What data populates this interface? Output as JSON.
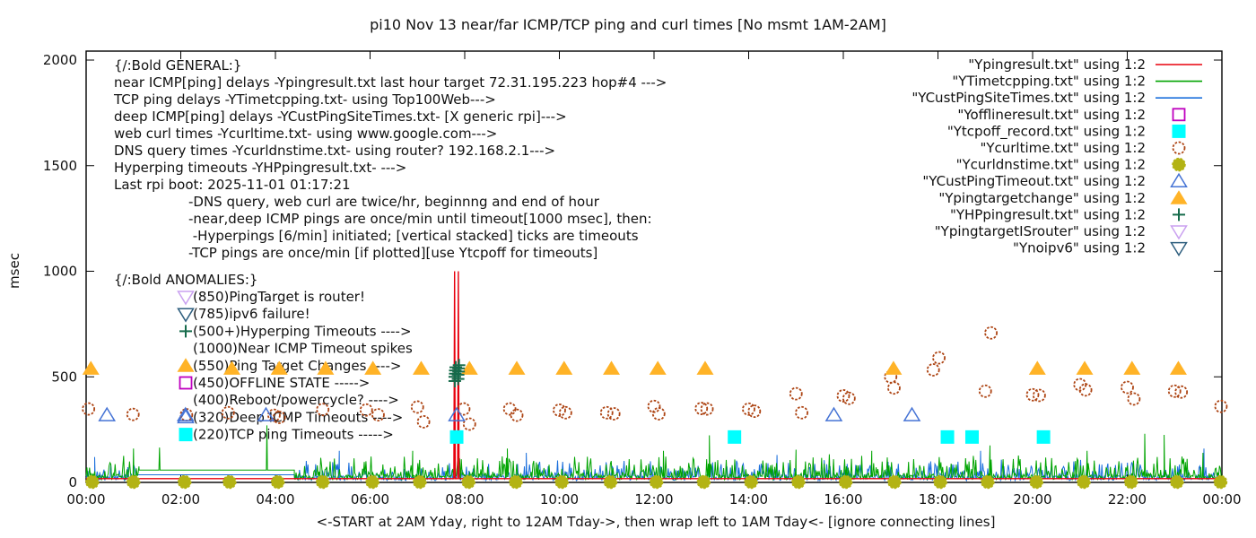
{
  "title": "pi10 Nov 13  near/far ICMP/TCP ping and curl times [No msmt 1AM-2AM]",
  "xlabel": "<-START at 2AM Yday, right to 12AM Tday->, then wrap left to 1AM Tday<- [ignore connecting lines]",
  "ylabel": "msec",
  "chart_data": {
    "type": "line+scatter",
    "x_unit": "hours",
    "x_range": [
      0,
      24
    ],
    "ylim": [
      0,
      2000
    ],
    "y_ticks": [
      0,
      500,
      1000,
      1500,
      2000
    ],
    "x_tick_labels": [
      "00:00",
      "02:00",
      "04:00",
      "06:00",
      "08:00",
      "10:00",
      "12:00",
      "14:00",
      "16:00",
      "18:00",
      "20:00",
      "22:00",
      "00:00"
    ],
    "grid": false,
    "legend_position": "top-right-inside",
    "noise_seed": 11,
    "legend": [
      {
        "label": "\"Ypingresult.txt\" using 1:2",
        "marker": "line",
        "color": "#e8000d"
      },
      {
        "label": "\"YTimetcpping.txt\" using 1:2",
        "marker": "line",
        "color": "#00a400"
      },
      {
        "label": "\"YCustPingSiteTimes.txt\" using 1:2",
        "marker": "line",
        "color": "#1b6fdc"
      },
      {
        "label": "\"Yofflineresult.txt\" using 1:2",
        "marker": "square-open",
        "color": "#bf00bf"
      },
      {
        "label": "\"Ytcpoff_record.txt\" using 1:2",
        "marker": "square-filled",
        "color": "#00ffff"
      },
      {
        "label": "\"Ycurltime.txt\" using 1:2",
        "marker": "circle-open",
        "color": "#ad4413"
      },
      {
        "label": "\"Ycurldnstime.txt\" using 1:2",
        "marker": "circle-filled",
        "color": "#b3b314"
      },
      {
        "label": "\"YCustPingTimeout.txt\" using 1:2",
        "marker": "tri-up-open",
        "color": "#4573d5"
      },
      {
        "label": "\"Ypingtargetchange\" using 1:2",
        "marker": "tri-up-filled",
        "color": "#ffb327"
      },
      {
        "label": "\"YHPpingresult.txt\" using 1:2",
        "marker": "plus",
        "color": "#166b4b"
      },
      {
        "label": "\"YpingtargetISrouter\" using 1:2",
        "marker": "tri-down-open",
        "color": "#caa1f0"
      },
      {
        "label": "\"Ynoipv6\" using 1:2",
        "marker": "tri-down-open",
        "color": "#2e5e7e"
      }
    ],
    "annotations": {
      "general_header": "{/:Bold GENERAL:}",
      "general_lines": [
        "near ICMP[ping] delays -Ypingresult.txt last hour target 72.31.195.223 hop#4 --->",
        "TCP ping delays -YTimetcpping.txt- using Top100Web--->",
        "deep ICMP[ping] delays -YCustPingSiteTimes.txt- [X generic rpi]--->",
        "web curl times -Ycurltime.txt- using www.google.com--->",
        "DNS query times -Ycurldnstime.txt- using router? 192.168.2.1--->",
        "Hyperping timeouts -YHPpingresult.txt- --->",
        "Last rpi boot: 2025-11-01 01:17:21"
      ],
      "note_lines": [
        "-DNS query, web curl are twice/hr, beginnng and end of hour",
        "-near,deep ICMP pings are once/min until timeout[1000 msec], then:",
        " -Hyperpings [6/min] initiated; [vertical stacked] ticks are timeouts",
        "-TCP pings are once/min [if plotted][use Ytcpoff for timeouts]"
      ],
      "anomalies_header": "{/:Bold ANOMALIES:}",
      "anomaly_lines": [
        {
          "marker": "tri-down-open",
          "color": "#caa1f0",
          "text": "(850)PingTarget is router!"
        },
        {
          "marker": "tri-down-open",
          "color": "#2e5e7e",
          "text": "(785)ipv6 failure!"
        },
        {
          "marker": "plus",
          "color": "#166b4b",
          "text": "(500+)Hyperping Timeouts ---->"
        },
        {
          "marker": null,
          "color": null,
          "text": "(1000)Near ICMP Timeout spikes"
        },
        {
          "marker": "tri-up-filled",
          "color": "#ffb327",
          "text": "(550)Ping Target Changes ---->"
        },
        {
          "marker": "square-open",
          "color": "#bf00bf",
          "text": "(450)OFFLINE STATE ----->"
        },
        {
          "marker": null,
          "color": null,
          "text": "(400)Reboot/powercycle? ---->"
        },
        {
          "marker": "tri-up-open",
          "color": "#4573d5",
          "text": "(320)Deep ICMP Timeouts ---->"
        },
        {
          "marker": "square-filled",
          "color": "#00ffff",
          "text": "(220)TCP ping Timeouts ----->"
        }
      ]
    },
    "series": {
      "ping_red": {
        "name": "Ypingresult.txt",
        "color": "#e8000d",
        "style": "line",
        "points": [
          [
            0,
            18
          ],
          [
            7.77,
            18
          ],
          [
            7.785,
            1000
          ],
          [
            7.8,
            18
          ],
          [
            7.85,
            18
          ],
          [
            7.865,
            1000
          ],
          [
            7.88,
            18
          ],
          [
            24,
            18
          ]
        ]
      },
      "tcp_green": {
        "name": "YTimetcpping.txt",
        "color": "#00a400",
        "style": "noisy-line",
        "segments": [
          {
            "kind": "noise",
            "from": 0,
            "to": 1.12,
            "base": 12,
            "amp": 95
          },
          {
            "kind": "flat",
            "from": 1.12,
            "to": 4.4,
            "value": 58
          },
          {
            "kind": "noise",
            "from": 4.4,
            "to": 24,
            "base": 12,
            "amp": 100
          }
        ],
        "spikes": [
          [
            1.0,
            160
          ],
          [
            1.55,
            165
          ],
          [
            3.82,
            270
          ],
          [
            6.9,
            150
          ],
          [
            8.9,
            160
          ],
          [
            12.2,
            150
          ],
          [
            13.17,
            223
          ],
          [
            15.0,
            155
          ],
          [
            16.6,
            150
          ],
          [
            19.1,
            175
          ],
          [
            21.15,
            150
          ],
          [
            22.37,
            230
          ],
          [
            22.78,
            225
          ],
          [
            23.6,
            140
          ]
        ]
      },
      "deep_blue": {
        "name": "YCustPingSiteTimes.txt",
        "color": "#1b6fdc",
        "style": "noisy-line",
        "segments": [
          {
            "kind": "noise",
            "from": 0,
            "to": 1.05,
            "base": 8,
            "amp": 75
          },
          {
            "kind": "flat",
            "from": 1.05,
            "to": 4.4,
            "value": 36
          },
          {
            "kind": "noise",
            "from": 4.4,
            "to": 24,
            "base": 8,
            "amp": 80
          }
        ],
        "spikes": [
          [
            0.18,
            120
          ],
          [
            5.35,
            150
          ],
          [
            9.3,
            140
          ],
          [
            14.6,
            130
          ],
          [
            18.9,
            150
          ],
          [
            23.62,
            160
          ]
        ]
      },
      "curl_circles": {
        "name": "Ycurltime.txt",
        "color": "#ad4413",
        "marker": "circle-open",
        "points": [
          [
            0.05,
            348
          ],
          [
            0.99,
            322
          ],
          [
            2.12,
            320
          ],
          [
            3.0,
            330
          ],
          [
            3.97,
            318
          ],
          [
            4.08,
            308
          ],
          [
            5.0,
            345
          ],
          [
            5.92,
            343
          ],
          [
            6.17,
            320
          ],
          [
            7.0,
            357
          ],
          [
            7.13,
            287
          ],
          [
            7.98,
            348
          ],
          [
            8.1,
            276
          ],
          [
            8.95,
            348
          ],
          [
            9.1,
            318
          ],
          [
            10.0,
            342
          ],
          [
            10.13,
            330
          ],
          [
            11.0,
            330
          ],
          [
            11.15,
            325
          ],
          [
            12.0,
            360
          ],
          [
            12.1,
            325
          ],
          [
            13.0,
            350
          ],
          [
            13.12,
            348
          ],
          [
            14.0,
            347
          ],
          [
            14.12,
            337
          ],
          [
            15.0,
            420
          ],
          [
            15.12,
            330
          ],
          [
            16.0,
            410
          ],
          [
            16.12,
            398
          ],
          [
            17.0,
            500
          ],
          [
            17.07,
            447
          ],
          [
            17.9,
            533
          ],
          [
            18.02,
            590
          ],
          [
            19.0,
            432
          ],
          [
            19.12,
            708
          ],
          [
            20.0,
            415
          ],
          [
            20.14,
            412
          ],
          [
            21.0,
            463
          ],
          [
            21.12,
            438
          ],
          [
            22.0,
            450
          ],
          [
            22.14,
            395
          ],
          [
            23.0,
            432
          ],
          [
            23.14,
            428
          ],
          [
            23.98,
            360
          ]
        ]
      },
      "dns_circles": {
        "name": "Ycurldnstime.txt",
        "color": "#b3b314",
        "marker": "circle-filled",
        "value": 2,
        "times": [
          0.13,
          1.0,
          2.08,
          3.03,
          4.05,
          5.0,
          6.05,
          7.05,
          8.08,
          9.08,
          10.05,
          11.08,
          12.05,
          13.05,
          14.05,
          15.05,
          16.05,
          17.08,
          18.05,
          19.05,
          20.08,
          21.08,
          22.08,
          23.05,
          23.97
        ]
      },
      "cust_timeout_triangles": {
        "name": "YCustPingTimeout.txt",
        "color": "#4573d5",
        "marker": "tri-up-open",
        "value": 318,
        "times": [
          0.44,
          2.1,
          3.8,
          7.83,
          15.8,
          17.45
        ]
      },
      "target_change_triangles": {
        "name": "Ypingtargetchange",
        "color": "#ffb327",
        "marker": "tri-up-filled",
        "value": 540,
        "times": [
          0.1,
          3.08,
          4.08,
          5.06,
          6.06,
          7.08,
          8.1,
          9.1,
          10.1,
          11.1,
          12.08,
          13.08,
          17.06,
          20.1,
          21.1,
          22.1,
          23.08
        ]
      },
      "hyperping_plus": {
        "name": "YHPpingresult.txt",
        "color": "#166b4b",
        "marker": "plus",
        "points": [
          [
            7.79,
            480
          ],
          [
            7.79,
            500
          ],
          [
            7.8,
            515
          ],
          [
            7.8,
            530
          ],
          [
            7.81,
            545
          ],
          [
            7.86,
            490
          ],
          [
            7.86,
            510
          ],
          [
            7.87,
            525
          ],
          [
            7.87,
            540
          ],
          [
            7.88,
            555
          ]
        ]
      },
      "tcpoff_squares": {
        "name": "Ytcpoff_record.txt",
        "color": "#00ffff",
        "marker": "square-filled",
        "value": 215,
        "times": [
          7.83,
          13.7,
          18.2,
          18.72,
          20.23
        ]
      }
    }
  }
}
